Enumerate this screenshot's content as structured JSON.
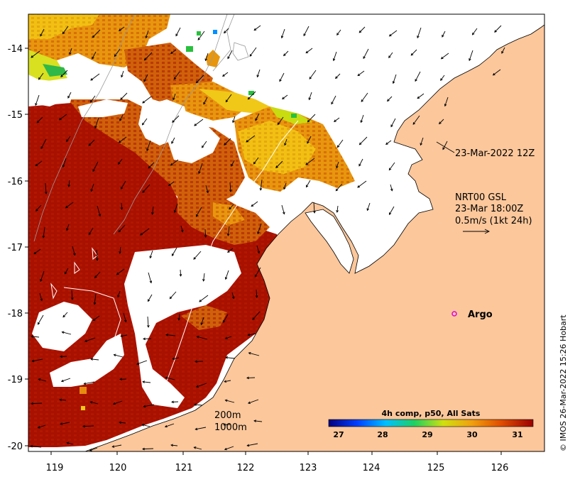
{
  "map": {
    "x_ticks": [
      "119",
      "120",
      "121",
      "122",
      "123",
      "124",
      "125",
      "126"
    ],
    "y_ticks": [
      "-14",
      "-15",
      "-16",
      "-17",
      "-18",
      "-19",
      "-20"
    ],
    "colors": {
      "land": "#fbc79b",
      "sst_hot": "#a81000",
      "sst_warm": "#c84a08",
      "sst_mid": "#e88c10",
      "sst_cool": "#f2c012",
      "sst_cold": "#c8dc10",
      "sst_green": "#28c03c"
    }
  },
  "annotations": {
    "timestamp": "23-Mar-2022 12Z",
    "current_title": "NRT00 GSL",
    "current_time": "23-Mar 18:00Z",
    "current_scale": "0.5m/s (1kt 24h)",
    "argo_label": "Argo",
    "depth_200": "200m",
    "depth_1000": "1000m"
  },
  "colorbar": {
    "title": "4h comp, p50, All Sats",
    "ticks": [
      "27",
      "28",
      "29",
      "30",
      "31"
    ],
    "stops": [
      "#00007f",
      "#0040ff",
      "#00c0ff",
      "#20d060",
      "#d0e010",
      "#f0a010",
      "#e05000",
      "#9c0000"
    ]
  },
  "credit": "© IMOS 26-Mar-2022 15:26 Hobart"
}
